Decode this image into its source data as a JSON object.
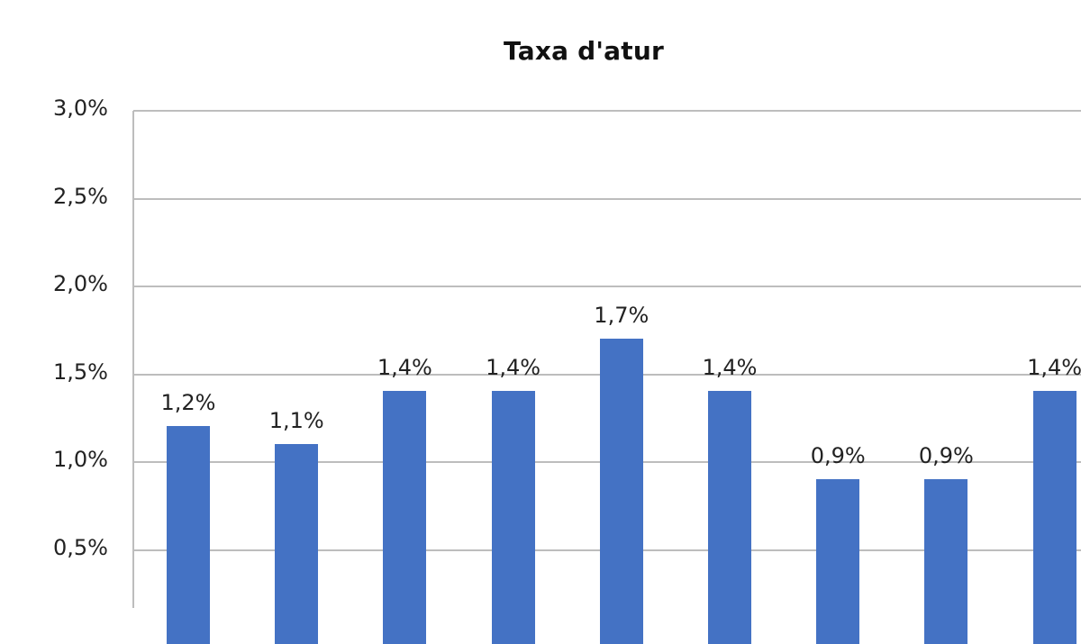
{
  "chart_data": {
    "type": "bar",
    "title": "Taxa d'atur",
    "xlabel": "",
    "ylabel": "",
    "categories": [
      "",
      "",
      "",
      "",
      "",
      "",
      "",
      "",
      ""
    ],
    "values": [
      1.2,
      1.1,
      1.4,
      1.4,
      1.7,
      1.4,
      0.9,
      0.9,
      1.4
    ],
    "value_labels": [
      "1,2%",
      "1,1%",
      "1,4%",
      "1,4%",
      "1,7%",
      "1,4%",
      "0,9%",
      "0,9%",
      "1,4%"
    ],
    "ylim": [
      0,
      3.0
    ],
    "yticks": [
      0.5,
      1.0,
      1.5,
      2.0,
      2.5,
      3.0
    ],
    "ytick_labels": [
      "0,5%",
      "1,0%",
      "1,5%",
      "2,0%",
      "2,5%",
      "3,0%"
    ],
    "grid": true,
    "legend": null,
    "bar_color": "#4472C4",
    "gridline_color": "#BDBDBD"
  }
}
